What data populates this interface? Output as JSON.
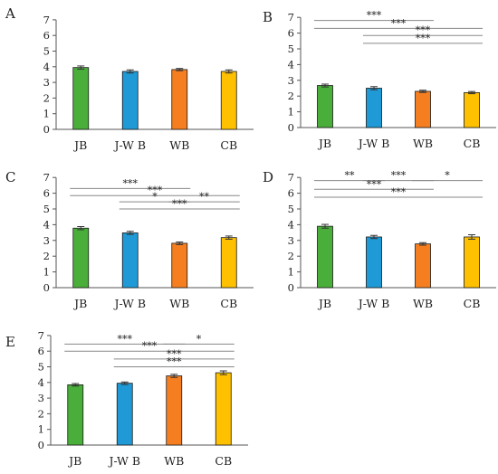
{
  "chart_data": [
    {
      "panel": "A",
      "type": "bar",
      "categories": [
        "JB",
        "J-W B",
        "WB",
        "CB"
      ],
      "values": [
        3.95,
        3.7,
        3.82,
        3.7
      ],
      "errors": [
        0.1,
        0.1,
        0.07,
        0.1
      ],
      "ylim": [
        0,
        7
      ],
      "yticks": [
        "0",
        "1",
        "2",
        "3",
        "4",
        "5",
        "6",
        "7"
      ],
      "comparisons": []
    },
    {
      "panel": "B",
      "type": "bar",
      "categories": [
        "JB",
        "J-W B",
        "WB",
        "CB"
      ],
      "values": [
        2.67,
        2.5,
        2.3,
        2.22
      ],
      "errors": [
        0.09,
        0.1,
        0.07,
        0.07
      ],
      "ylim": [
        0,
        7
      ],
      "yticks": [
        "0",
        "1",
        "2",
        "3",
        "4",
        "5",
        "6",
        "7"
      ],
      "comparisons": [
        {
          "from": 0,
          "to": 2,
          "label": "***",
          "level": 6.8
        },
        {
          "from": 0,
          "to": 3,
          "label": "***",
          "level": 6.3
        },
        {
          "from": 1,
          "to": 3,
          "label": "***",
          "level": 5.85
        },
        {
          "from": 1,
          "to": 3,
          "label": "***",
          "level": 5.35
        }
      ]
    },
    {
      "panel": "C",
      "type": "bar",
      "categories": [
        "JB",
        "J-W B",
        "WB",
        "CB"
      ],
      "values": [
        3.78,
        3.48,
        2.82,
        3.18
      ],
      "errors": [
        0.1,
        0.1,
        0.08,
        0.1
      ],
      "ylim": [
        0,
        7
      ],
      "yticks": [
        "0",
        "1",
        "2",
        "3",
        "4",
        "5",
        "6",
        "7"
      ],
      "comparisons": [
        {
          "from": 0,
          "to": 2,
          "label": "***",
          "level": 6.3
        },
        {
          "from": 0,
          "to": 3,
          "label": "***",
          "level": 5.85
        },
        {
          "from": 1,
          "to": 2,
          "label": "*",
          "level": 5.45
        },
        {
          "from": 2,
          "to": 3,
          "label": "**",
          "level": 5.45
        },
        {
          "from": 1,
          "to": 3,
          "label": "***",
          "level": 5.0
        }
      ]
    },
    {
      "panel": "D",
      "type": "bar",
      "categories": [
        "JB",
        "J-W B",
        "WB",
        "CB"
      ],
      "values": [
        3.9,
        3.22,
        2.78,
        3.22
      ],
      "errors": [
        0.12,
        0.1,
        0.08,
        0.14
      ],
      "ylim": [
        0,
        7
      ],
      "yticks": [
        "0",
        "1",
        "2",
        "3",
        "4",
        "5",
        "6",
        "7"
      ],
      "comparisons": [
        {
          "from": 0,
          "to": 1,
          "label": "**",
          "level": 6.8
        },
        {
          "from": 1,
          "to": 2,
          "label": "***",
          "level": 6.8
        },
        {
          "from": 2,
          "to": 3,
          "label": "*",
          "level": 6.8
        },
        {
          "from": 0,
          "to": 2,
          "label": "***",
          "level": 6.25
        },
        {
          "from": 0,
          "to": 3,
          "label": "***",
          "level": 5.75
        }
      ]
    },
    {
      "panel": "E",
      "type": "bar",
      "categories": [
        "JB",
        "J-W B",
        "WB",
        "CB"
      ],
      "values": [
        3.85,
        3.95,
        4.42,
        4.62
      ],
      "errors": [
        0.08,
        0.08,
        0.1,
        0.12
      ],
      "ylim": [
        0,
        7
      ],
      "yticks": [
        "0",
        "1",
        "2",
        "3",
        "4",
        "5",
        "6",
        "7"
      ],
      "comparisons": [
        {
          "from": 0,
          "to": 2,
          "label": "***",
          "level": 6.45
        },
        {
          "from": 2,
          "to": 3,
          "label": "*",
          "level": 6.45
        },
        {
          "from": 0,
          "to": 3,
          "label": "***",
          "level": 6.0
        },
        {
          "from": 1,
          "to": 3,
          "label": "***",
          "level": 5.5
        },
        {
          "from": 1,
          "to": 3,
          "label": "***",
          "level": 5.0
        }
      ]
    }
  ],
  "colors": {
    "bars": [
      "#4aae3a",
      "#1f9ad6",
      "#f57f20",
      "#ffc000"
    ],
    "bar_edge": "#1a1a1a",
    "axis": "#555555",
    "error": "#333333",
    "bracket": "#888888"
  }
}
